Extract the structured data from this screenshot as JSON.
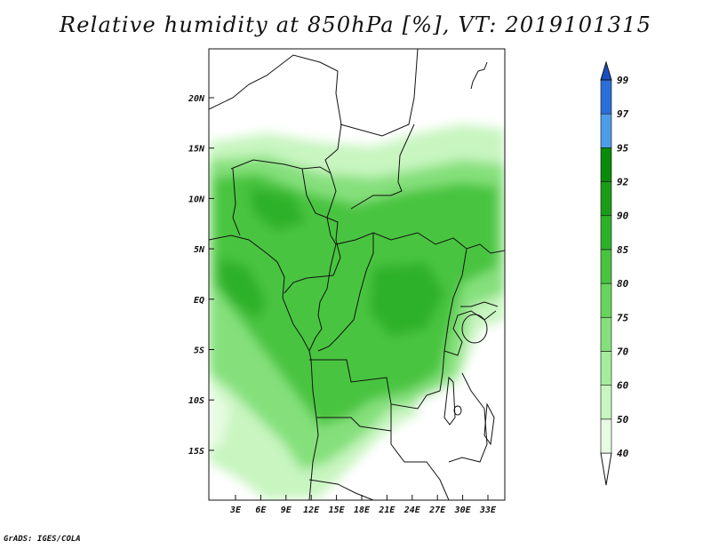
{
  "title": "Relative humidity at 850hPa [%], VT: 2019101315",
  "credit": "GrADS: IGES/COLA",
  "map": {
    "lat_labels": [
      "20N",
      "15N",
      "10N",
      "5N",
      "EQ",
      "5S",
      "10S",
      "15S"
    ],
    "lon_labels": [
      "3E",
      "6E",
      "9E",
      "12E",
      "15E",
      "18E",
      "21E",
      "24E",
      "27E",
      "30E",
      "33E"
    ]
  },
  "colorbar": {
    "levels": [
      "40",
      "50",
      "60",
      "70",
      "75",
      "80",
      "85",
      "90",
      "92",
      "95",
      "97",
      "99"
    ],
    "colors": [
      "#ffffff",
      "#e6fbe1",
      "#c8f5c0",
      "#a5ec9c",
      "#85e07c",
      "#66d45d",
      "#48c441",
      "#2eb12a",
      "#1a9c18",
      "#0a8a0a",
      "#4d9ce8",
      "#2a6fd8",
      "#1a4fc4"
    ]
  },
  "colors": {
    "land_humid": "#48c441",
    "land_moist": "#85e07c",
    "land_dry": "#e6fbe1",
    "border": "#111111"
  }
}
